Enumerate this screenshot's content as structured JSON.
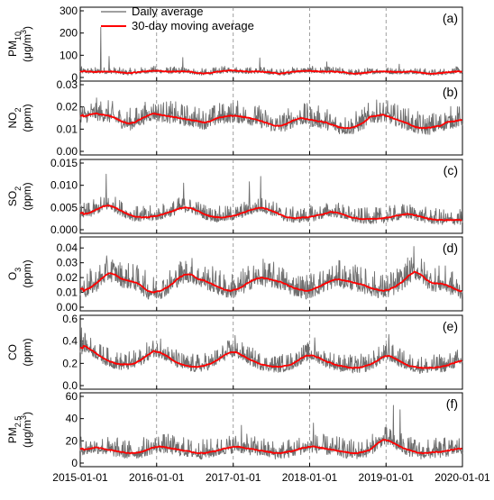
{
  "chart_data": {
    "type": "line",
    "legend": {
      "placement": "top",
      "entries": [
        {
          "label": "Daily average",
          "color": "#808080"
        },
        {
          "label": "30-day moving average",
          "color": "#ff0000"
        }
      ]
    },
    "x": {
      "range": [
        "2015-01-01",
        "2020-01-01"
      ],
      "ticks": [
        "2015-01-01",
        "2016-01-01",
        "2017-01-01",
        "2018-01-01",
        "2019-01-01",
        "2020-01-01"
      ],
      "gridlines": "dashed-vertical-at-year-boundaries"
    },
    "panels": [
      {
        "tag": "(a)",
        "ylabel_main": "PM",
        "ylabel_sub": "10",
        "ylabel_unit": "(μg/m",
        "ylabel_unit_sup": "3",
        "ylabel_unit_end": ")",
        "ylim": [
          0,
          300
        ],
        "yticks": [
          {
            "value": 0,
            "label": "0"
          },
          {
            "value": 100,
            "label": "100"
          },
          {
            "value": 200,
            "label": "200"
          },
          {
            "value": 300,
            "label": "300"
          }
        ],
        "moving_average_monthly": [
          28,
          26,
          25,
          26,
          27,
          26,
          22,
          20,
          22,
          25,
          28,
          30,
          29,
          27,
          26,
          27,
          28,
          25,
          20,
          18,
          21,
          25,
          29,
          32,
          30,
          28,
          26,
          27,
          26,
          24,
          20,
          18,
          22,
          26,
          29,
          30,
          29,
          27,
          26,
          27,
          25,
          23,
          19,
          17,
          21,
          24,
          27,
          28,
          26,
          25,
          24,
          26,
          25,
          22,
          18,
          17,
          20,
          23,
          26,
          27
        ],
        "daily_base_monthly": [
          28,
          26,
          25,
          26,
          27,
          26,
          22,
          20,
          22,
          25,
          28,
          30,
          29,
          27,
          26,
          27,
          28,
          25,
          20,
          18,
          21,
          25,
          29,
          32,
          30,
          28,
          26,
          27,
          26,
          24,
          20,
          18,
          22,
          26,
          29,
          30,
          29,
          27,
          26,
          27,
          25,
          23,
          19,
          17,
          21,
          24,
          27,
          28,
          26,
          25,
          24,
          26,
          25,
          22,
          18,
          17,
          20,
          23,
          26,
          27
        ],
        "daily_noise_amplitude": 14,
        "spikes": [
          {
            "date": "2015-04-10",
            "value": 225
          },
          {
            "date": "2015-05-20",
            "value": 95
          },
          {
            "date": "2016-05-05",
            "value": 90
          },
          {
            "date": "2017-05-08",
            "value": 88
          },
          {
            "date": "2018-03-25",
            "value": 70
          },
          {
            "date": "2019-03-05",
            "value": 60
          }
        ],
        "clip_floor": 0
      },
      {
        "tag": "(b)",
        "ylabel_main": "NO",
        "ylabel_sub": "2",
        "ylabel_unit": "(ppm)",
        "ylabel_unit_sup": "",
        "ylabel_unit_end": "",
        "ylim": [
          0,
          0.03
        ],
        "yticks": [
          {
            "value": 0,
            "label": "0.00"
          },
          {
            "value": 0.01,
            "label": "0.01"
          },
          {
            "value": 0.02,
            "label": "0.02"
          },
          {
            "value": 0.03,
            "label": "0.03"
          }
        ],
        "moving_average_monthly": [
          0.0155,
          0.0165,
          0.017,
          0.0165,
          0.016,
          0.015,
          0.0135,
          0.0125,
          0.013,
          0.0145,
          0.016,
          0.017,
          0.0165,
          0.016,
          0.0155,
          0.015,
          0.0145,
          0.014,
          0.0135,
          0.013,
          0.0135,
          0.015,
          0.0155,
          0.016,
          0.016,
          0.0155,
          0.015,
          0.0145,
          0.0135,
          0.0125,
          0.0115,
          0.0115,
          0.0125,
          0.014,
          0.015,
          0.0145,
          0.014,
          0.0135,
          0.013,
          0.012,
          0.011,
          0.0105,
          0.0105,
          0.0115,
          0.013,
          0.0155,
          0.016,
          0.0165,
          0.0155,
          0.0145,
          0.0135,
          0.0125,
          0.011,
          0.0105,
          0.0105,
          0.011,
          0.0115,
          0.013,
          0.0135,
          0.014
        ],
        "daily_noise_amplitude": 0.0045,
        "spikes": [],
        "clip_floor": 0.003
      },
      {
        "tag": "(c)",
        "ylabel_main": "SO",
        "ylabel_sub": "2",
        "ylabel_unit": "(ppm)",
        "ylabel_unit_sup": "",
        "ylabel_unit_end": "",
        "ylim": [
          0,
          0.015
        ],
        "yticks": [
          {
            "value": 0,
            "label": "0.000"
          },
          {
            "value": 0.005,
            "label": "0.005"
          },
          {
            "value": 0.01,
            "label": "0.010"
          },
          {
            "value": 0.015,
            "label": "0.015"
          }
        ],
        "moving_average_monthly": [
          0.0035,
          0.0038,
          0.0045,
          0.0052,
          0.0055,
          0.005,
          0.0042,
          0.0035,
          0.003,
          0.0028,
          0.0028,
          0.003,
          0.0033,
          0.0037,
          0.0042,
          0.0048,
          0.005,
          0.0048,
          0.0042,
          0.0035,
          0.003,
          0.0028,
          0.0028,
          0.003,
          0.0033,
          0.0038,
          0.0043,
          0.0048,
          0.005,
          0.0046,
          0.004,
          0.0033,
          0.0028,
          0.0026,
          0.0027,
          0.0028,
          0.003,
          0.0033,
          0.0037,
          0.004,
          0.0038,
          0.0033,
          0.0028,
          0.0025,
          0.0024,
          0.0024,
          0.0025,
          0.0026,
          0.0028,
          0.0031,
          0.0034,
          0.0035,
          0.0033,
          0.0029,
          0.0025,
          0.0023,
          0.0022,
          0.0022,
          0.0022,
          0.0022
        ],
        "daily_noise_amplitude": 0.0016,
        "spikes": [
          {
            "date": "2015-05-05",
            "value": 0.0125
          },
          {
            "date": "2016-05-10",
            "value": 0.0105
          },
          {
            "date": "2017-05-12",
            "value": 0.012
          },
          {
            "date": "2017-03-20",
            "value": 0.0108
          }
        ],
        "clip_floor": 0.0008
      },
      {
        "tag": "(d)",
        "ylabel_main": "O",
        "ylabel_sub": "3",
        "ylabel_unit": "(ppm)",
        "ylabel_unit_sup": "",
        "ylabel_unit_end": "",
        "ylim": [
          0,
          0.045
        ],
        "yticks": [
          {
            "value": 0,
            "label": "0.00"
          },
          {
            "value": 0.01,
            "label": "0.01"
          },
          {
            "value": 0.02,
            "label": "0.02"
          },
          {
            "value": 0.03,
            "label": "0.03"
          },
          {
            "value": 0.04,
            "label": "0.04"
          }
        ],
        "moving_average_monthly": [
          0.011,
          0.013,
          0.016,
          0.02,
          0.023,
          0.022,
          0.019,
          0.018,
          0.017,
          0.015,
          0.011,
          0.01,
          0.011,
          0.013,
          0.016,
          0.02,
          0.022,
          0.022,
          0.019,
          0.018,
          0.016,
          0.014,
          0.012,
          0.011,
          0.012,
          0.014,
          0.017,
          0.019,
          0.02,
          0.019,
          0.018,
          0.017,
          0.015,
          0.013,
          0.012,
          0.011,
          0.012,
          0.014,
          0.016,
          0.018,
          0.019,
          0.018,
          0.017,
          0.016,
          0.015,
          0.013,
          0.012,
          0.011,
          0.012,
          0.014,
          0.017,
          0.021,
          0.024,
          0.022,
          0.018,
          0.016,
          0.016,
          0.015,
          0.013,
          0.011
        ],
        "daily_noise_amplitude": 0.008,
        "spikes": [
          {
            "date": "2019-05-15",
            "value": 0.041
          },
          {
            "date": "2015-06-05",
            "value": 0.032
          },
          {
            "date": "2016-05-20",
            "value": 0.031
          }
        ],
        "clip_floor": 0.003
      },
      {
        "tag": "(e)",
        "ylabel_main": "CO",
        "ylabel_sub": "",
        "ylabel_unit": "(ppm)",
        "ylabel_unit_sup": "",
        "ylabel_unit_end": "",
        "ylim": [
          0,
          0.6
        ],
        "yticks": [
          {
            "value": 0,
            "label": "0.0"
          },
          {
            "value": 0.2,
            "label": "0.2"
          },
          {
            "value": 0.4,
            "label": "0.4"
          },
          {
            "value": 0.6,
            "label": "0.6"
          }
        ],
        "moving_average_monthly": [
          0.36,
          0.33,
          0.29,
          0.25,
          0.22,
          0.2,
          0.19,
          0.19,
          0.2,
          0.23,
          0.27,
          0.31,
          0.3,
          0.27,
          0.23,
          0.2,
          0.18,
          0.17,
          0.17,
          0.18,
          0.2,
          0.23,
          0.27,
          0.3,
          0.3,
          0.27,
          0.24,
          0.21,
          0.19,
          0.18,
          0.17,
          0.17,
          0.18,
          0.2,
          0.24,
          0.27,
          0.27,
          0.25,
          0.22,
          0.2,
          0.18,
          0.17,
          0.16,
          0.16,
          0.17,
          0.19,
          0.22,
          0.26,
          0.27,
          0.24,
          0.21,
          0.18,
          0.17,
          0.16,
          0.16,
          0.16,
          0.17,
          0.18,
          0.2,
          0.22
        ],
        "daily_noise_amplitude": 0.075,
        "spikes": [
          {
            "date": "2015-01-08",
            "value": 0.52
          },
          {
            "date": "2016-01-20",
            "value": 0.42
          },
          {
            "date": "2017-01-10",
            "value": 0.45
          },
          {
            "date": "2018-01-25",
            "value": 0.43
          },
          {
            "date": "2019-01-15",
            "value": 0.46
          }
        ],
        "clip_floor": 0.08
      },
      {
        "tag": "(f)",
        "ylabel_main": "PM",
        "ylabel_sub": "2.5",
        "ylabel_unit": "(μg/m",
        "ylabel_unit_sup": "3",
        "ylabel_unit_end": ")",
        "ylim": [
          0,
          60
        ],
        "yticks": [
          {
            "value": 0,
            "label": "0"
          },
          {
            "value": 20,
            "label": "20"
          },
          {
            "value": 40,
            "label": "40"
          },
          {
            "value": 60,
            "label": "60"
          }
        ],
        "moving_average_monthly": [
          12,
          13,
          14,
          13,
          12,
          11,
          10,
          9,
          9,
          10,
          12,
          14,
          15,
          14,
          13,
          12,
          11,
          10,
          9,
          9,
          10,
          11,
          13,
          14,
          15,
          14,
          13,
          12,
          11,
          10,
          9,
          9,
          10,
          11,
          13,
          14,
          15,
          14,
          13,
          12,
          11,
          10,
          9,
          9,
          10,
          12,
          17,
          21,
          20,
          17,
          14,
          12,
          10,
          9,
          9,
          10,
          10,
          11,
          12,
          13
        ],
        "daily_noise_amplitude": 8,
        "spikes": [
          {
            "date": "2019-02-05",
            "value": 52
          },
          {
            "date": "2019-03-10",
            "value": 48
          },
          {
            "date": "2018-01-20",
            "value": 36
          },
          {
            "date": "2017-02-10",
            "value": 34
          }
        ],
        "clip_floor": 1
      }
    ]
  }
}
